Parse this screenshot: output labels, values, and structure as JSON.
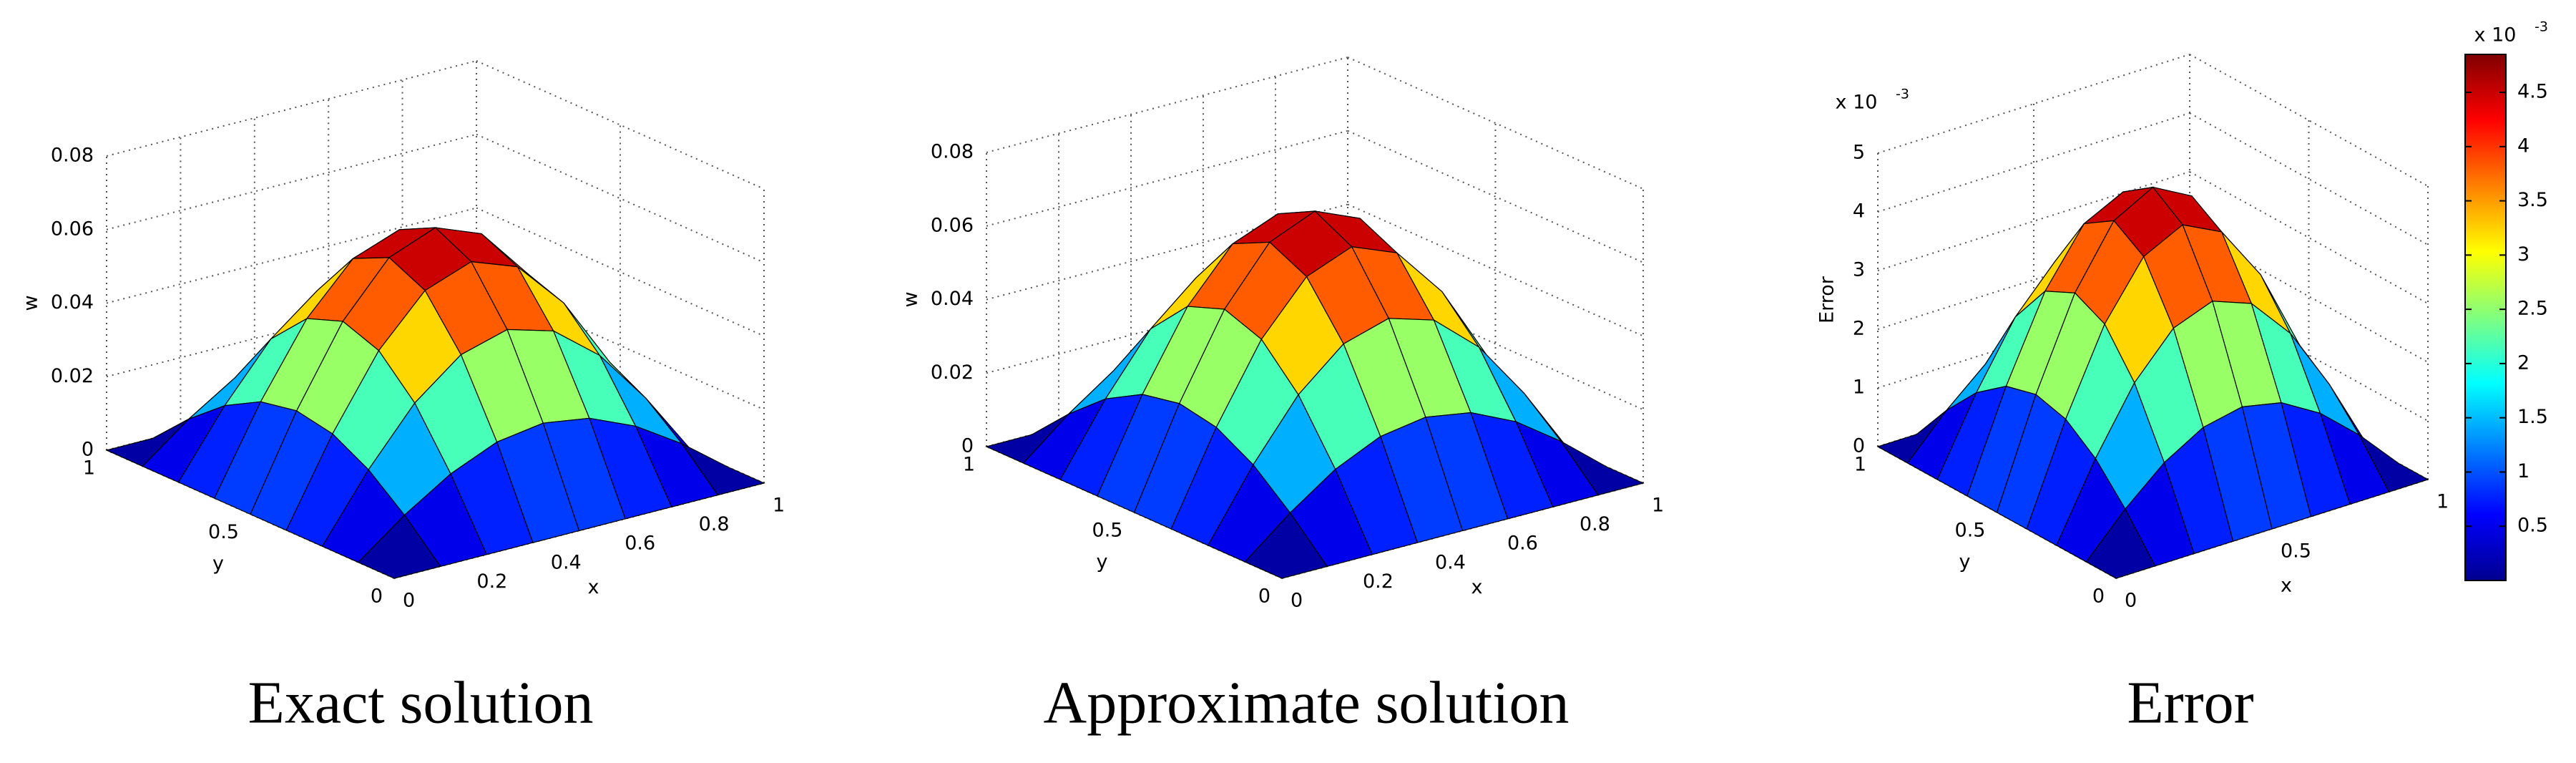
{
  "chart_data": [
    {
      "type": "surface",
      "title": "Exact solution",
      "xlabel": "x",
      "ylabel": "y",
      "zlabel": "w",
      "colormap": "jet",
      "grid": true,
      "x": [
        0,
        0.125,
        0.25,
        0.375,
        0.5,
        0.625,
        0.75,
        0.875,
        1
      ],
      "y": [
        0,
        0.125,
        0.25,
        0.375,
        0.5,
        0.625,
        0.75,
        0.875,
        1
      ],
      "z": [
        [
          0,
          0,
          0,
          0,
          0,
          0,
          0,
          0,
          0
        ],
        [
          0,
          0.0096,
          0.0176,
          0.023,
          0.0249,
          0.023,
          0.0176,
          0.0096,
          0
        ],
        [
          0,
          0.0176,
          0.0325,
          0.0424,
          0.046,
          0.0424,
          0.0325,
          0.0176,
          0
        ],
        [
          0,
          0.023,
          0.0424,
          0.0555,
          0.0601,
          0.0555,
          0.0424,
          0.023,
          0
        ],
        [
          0,
          0.0249,
          0.046,
          0.0601,
          0.065,
          0.0601,
          0.046,
          0.0249,
          0
        ],
        [
          0,
          0.023,
          0.0424,
          0.0555,
          0.0601,
          0.0555,
          0.0424,
          0.023,
          0
        ],
        [
          0,
          0.0176,
          0.0325,
          0.0424,
          0.046,
          0.0424,
          0.0325,
          0.0176,
          0
        ],
        [
          0,
          0.0096,
          0.0176,
          0.023,
          0.0249,
          0.023,
          0.0176,
          0.0096,
          0
        ],
        [
          0,
          0,
          0,
          0,
          0,
          0,
          0,
          0,
          0
        ]
      ],
      "xlim": [
        0,
        1
      ],
      "ylim": [
        0,
        1
      ],
      "zlim": [
        0,
        0.08
      ],
      "xticks": [
        0,
        0.2,
        0.4,
        0.6,
        0.8,
        1
      ],
      "yticks": [
        0,
        0.5,
        1
      ],
      "zticks": [
        0,
        0.02,
        0.04,
        0.06,
        0.08
      ]
    },
    {
      "type": "surface",
      "title": "Approximate solution",
      "xlabel": "x",
      "ylabel": "y",
      "zlabel": "w",
      "colormap": "jet",
      "grid": true,
      "x": [
        0,
        0.125,
        0.25,
        0.375,
        0.5,
        0.625,
        0.75,
        0.875,
        1
      ],
      "y": [
        0,
        0.125,
        0.25,
        0.375,
        0.5,
        0.625,
        0.75,
        0.875,
        1
      ],
      "z": [
        [
          0,
          0,
          0,
          0,
          0,
          0,
          0,
          0,
          0
        ],
        [
          0,
          0.0101,
          0.0187,
          0.0244,
          0.0264,
          0.0244,
          0.0187,
          0.0101,
          0
        ],
        [
          0,
          0.0187,
          0.0345,
          0.0451,
          0.0488,
          0.0451,
          0.0345,
          0.0187,
          0
        ],
        [
          0,
          0.0244,
          0.0451,
          0.0589,
          0.0638,
          0.0589,
          0.0451,
          0.0244,
          0
        ],
        [
          0,
          0.0264,
          0.0488,
          0.0638,
          0.069,
          0.0638,
          0.0488,
          0.0264,
          0
        ],
        [
          0,
          0.0244,
          0.0451,
          0.0589,
          0.0638,
          0.0589,
          0.0451,
          0.0244,
          0
        ],
        [
          0,
          0.0187,
          0.0345,
          0.0451,
          0.0488,
          0.0451,
          0.0345,
          0.0187,
          0
        ],
        [
          0,
          0.0101,
          0.0187,
          0.0244,
          0.0264,
          0.0244,
          0.0187,
          0.0101,
          0
        ],
        [
          0,
          0,
          0,
          0,
          0,
          0,
          0,
          0,
          0
        ]
      ],
      "xlim": [
        0,
        1
      ],
      "ylim": [
        0,
        1
      ],
      "zlim": [
        0,
        0.08
      ],
      "xticks": [
        0,
        0.2,
        0.4,
        0.6,
        0.8,
        1
      ],
      "yticks": [
        0,
        0.5,
        1
      ],
      "zticks": [
        0,
        0.02,
        0.04,
        0.06,
        0.08
      ]
    },
    {
      "type": "surface",
      "title": "Error",
      "xlabel": "x",
      "ylabel": "y",
      "zlabel": "Error",
      "colormap": "jet",
      "grid": true,
      "z_exponent": {
        "base": "x 10",
        "power": "-3"
      },
      "x": [
        0,
        0.125,
        0.25,
        0.375,
        0.5,
        0.625,
        0.75,
        0.875,
        1
      ],
      "y": [
        0,
        0.125,
        0.25,
        0.375,
        0.5,
        0.625,
        0.75,
        0.875,
        1
      ],
      "z": [
        [
          0,
          0,
          0,
          0,
          0,
          0,
          0,
          0,
          0
        ],
        [
          0,
          0.69,
          1.27,
          1.66,
          1.8,
          1.66,
          1.27,
          0.69,
          0
        ],
        [
          0,
          1.27,
          2.35,
          3.07,
          3.32,
          3.07,
          2.35,
          1.27,
          0
        ],
        [
          0,
          1.66,
          3.07,
          4.01,
          4.34,
          4.01,
          3.07,
          1.66,
          0
        ],
        [
          0,
          1.8,
          3.32,
          4.34,
          4.7,
          4.34,
          3.32,
          1.8,
          0
        ],
        [
          0,
          1.66,
          3.07,
          4.01,
          4.34,
          4.01,
          3.07,
          1.66,
          0
        ],
        [
          0,
          1.27,
          2.35,
          3.07,
          3.32,
          3.07,
          2.35,
          1.27,
          0
        ],
        [
          0,
          0.69,
          1.27,
          1.66,
          1.8,
          1.66,
          1.27,
          0.69,
          0
        ],
        [
          0,
          0,
          0,
          0,
          0,
          0,
          0,
          0,
          0
        ]
      ],
      "xlim": [
        0,
        1
      ],
      "ylim": [
        0,
        1
      ],
      "zlim": [
        0,
        5
      ],
      "xticks": [
        0,
        0.5,
        1
      ],
      "yticks": [
        0,
        0.5,
        1
      ],
      "zticks": [
        0,
        1,
        2,
        3,
        4,
        5
      ],
      "colorbar": {
        "clim": [
          0,
          4.85
        ],
        "ticks": [
          0.5,
          1,
          1.5,
          2,
          2.5,
          3,
          3.5,
          4,
          4.5
        ],
        "exponent": {
          "base": "x 10",
          "power": "-3"
        }
      }
    }
  ]
}
